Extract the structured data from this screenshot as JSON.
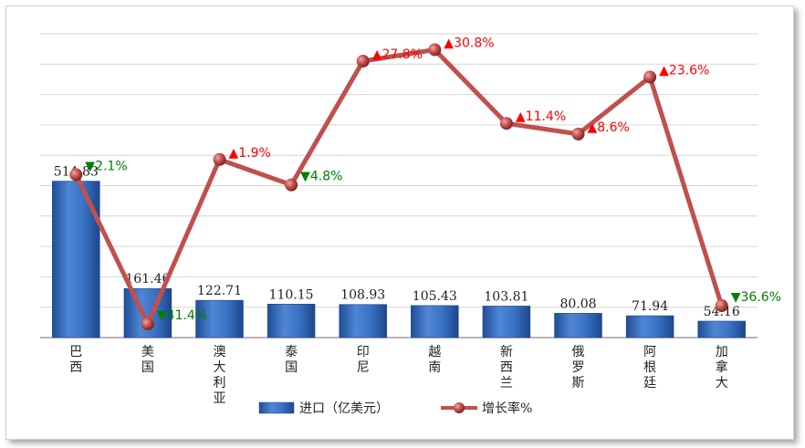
{
  "chart_data": {
    "type": "bar+line",
    "categories": [
      "巴西",
      "美国",
      "澳大利亚",
      "泰国",
      "印尼",
      "越南",
      "新西兰",
      "俄罗斯",
      "阿根廷",
      "加拿大"
    ],
    "series": [
      {
        "name": "进口（亿美元）",
        "type": "bar",
        "values": [
          514.83,
          161.46,
          122.71,
          110.15,
          108.93,
          105.43,
          103.81,
          80.08,
          71.94,
          54.16
        ],
        "labels": [
          "514.83",
          "161.46",
          "122.71",
          "110.15",
          "108.93",
          "105.43",
          "103.81",
          "80.08",
          "71.94",
          "54.16"
        ],
        "color": "#2f65b8"
      },
      {
        "name": "增长率%",
        "type": "line",
        "values": [
          -2.1,
          -41.4,
          1.9,
          -4.8,
          27.8,
          30.8,
          11.4,
          8.6,
          23.6,
          -36.6
        ],
        "labels": [
          "2.1%",
          "41.4%",
          "1.9%",
          "4.8%",
          "27.8%",
          "30.8%",
          "11.4%",
          "8.6%",
          "23.6%",
          "36.6%"
        ],
        "directions": [
          "down",
          "down",
          "up",
          "down",
          "up",
          "up",
          "up",
          "up",
          "up",
          "down"
        ],
        "color": "#c0504d"
      }
    ],
    "y_bar_range": [
      0,
      1000
    ],
    "y_line_range": [
      -45,
      35
    ],
    "grid": true,
    "legend_position": "bottom",
    "colors": {
      "up": "#ff0000",
      "down": "#008000"
    }
  }
}
